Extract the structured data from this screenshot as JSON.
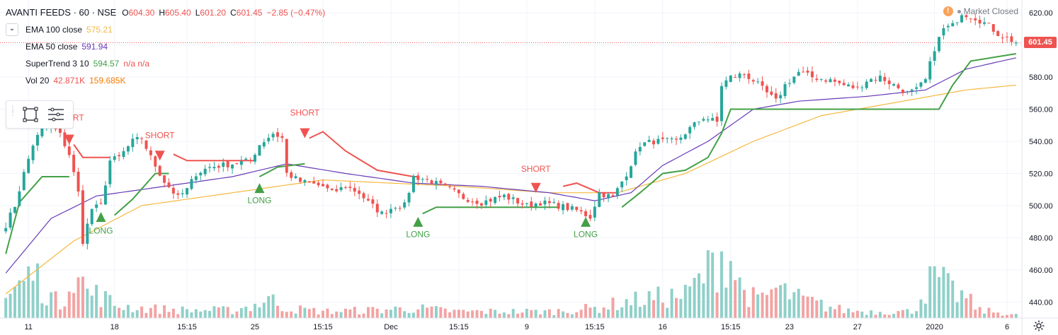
{
  "header": {
    "title": "AVANTI FEEDS · 60 · NSE",
    "ohlc": {
      "o_label": "O",
      "o": "604.30",
      "h_label": "H",
      "h": "605.40",
      "l_label": "L",
      "l": "601.20",
      "c_label": "C",
      "c": "601.45",
      "change": "−2.85 (−0.47%)"
    },
    "market_status": "Market Closed",
    "collapse_icon": "chevron-down-icon"
  },
  "indicators": [
    {
      "name": "EMA 100 close",
      "value": "575.21",
      "color": "#f5b942"
    },
    {
      "name": "EMA 50 close",
      "value": "591.94",
      "color": "#673ab7"
    },
    {
      "name": "SuperTrend 3 10",
      "value": "594.57",
      "extra": "n/a n/a",
      "color": "#43a047",
      "extra_color": "#ef5350"
    },
    {
      "name": "Vol 20",
      "value": "42.871K",
      "value2": "159.685K",
      "color": "#ef5350",
      "color2": "#f57c00"
    }
  ],
  "toolbox": {
    "icons": [
      "rectangle-select-icon",
      "lines-menu-icon"
    ]
  },
  "chart_data": {
    "type": "candlestick",
    "symbol": "AVANTI FEEDS",
    "interval": "60",
    "exchange": "NSE",
    "ylim": [
      430,
      628
    ],
    "y_ticks": [
      440,
      460,
      480,
      500,
      520,
      540,
      560,
      580,
      600,
      620
    ],
    "x_tick_labels": [
      {
        "i": 5,
        "label": "11"
      },
      {
        "i": 24,
        "label": "18"
      },
      {
        "i": 40,
        "label": "15:15"
      },
      {
        "i": 55,
        "label": "25"
      },
      {
        "i": 70,
        "label": "15:15"
      },
      {
        "i": 85,
        "label": "Dec"
      },
      {
        "i": 100,
        "label": "15:15"
      },
      {
        "i": 115,
        "label": "9"
      },
      {
        "i": 130,
        "label": "15:15"
      },
      {
        "i": 145,
        "label": "16"
      },
      {
        "i": 160,
        "label": "15:15"
      },
      {
        "i": 173,
        "label": "23"
      },
      {
        "i": 188,
        "label": "27"
      },
      {
        "i": 205,
        "label": "2020"
      },
      {
        "i": 221,
        "label": "6"
      }
    ],
    "last_price": 601.45,
    "last_price_label": "601.45",
    "price_anchors": [
      [
        0,
        488
      ],
      [
        2,
        500
      ],
      [
        4,
        520
      ],
      [
        6,
        538
      ],
      [
        8,
        548
      ],
      [
        10,
        550
      ],
      [
        12,
        544
      ],
      [
        14,
        532
      ],
      [
        16,
        508
      ],
      [
        17,
        478
      ],
      [
        19,
        498
      ],
      [
        21,
        500
      ],
      [
        23,
        528
      ],
      [
        25,
        530
      ],
      [
        28,
        540
      ],
      [
        30,
        542
      ],
      [
        32,
        530
      ],
      [
        35,
        515
      ],
      [
        38,
        505
      ],
      [
        40,
        510
      ],
      [
        42,
        520
      ],
      [
        45,
        524
      ],
      [
        50,
        526
      ],
      [
        54,
        528
      ],
      [
        56,
        538
      ],
      [
        59,
        545
      ],
      [
        61,
        542
      ],
      [
        62,
        520
      ],
      [
        65,
        515
      ],
      [
        70,
        512
      ],
      [
        72,
        508
      ],
      [
        75,
        512
      ],
      [
        78,
        508
      ],
      [
        80,
        502
      ],
      [
        83,
        495
      ],
      [
        86,
        500
      ],
      [
        88,
        500
      ],
      [
        90,
        518
      ],
      [
        93,
        516
      ],
      [
        98,
        510
      ],
      [
        101,
        505
      ],
      [
        105,
        502
      ],
      [
        110,
        506
      ],
      [
        115,
        500
      ],
      [
        118,
        502
      ],
      [
        122,
        500
      ],
      [
        126,
        497
      ],
      [
        129,
        493
      ],
      [
        131,
        508
      ],
      [
        134,
        505
      ],
      [
        137,
        520
      ],
      [
        140,
        538
      ],
      [
        143,
        540
      ],
      [
        148,
        540
      ],
      [
        151,
        548
      ],
      [
        154,
        555
      ],
      [
        157,
        552
      ],
      [
        158,
        575
      ],
      [
        160,
        580
      ],
      [
        163,
        582
      ],
      [
        165,
        578
      ],
      [
        168,
        570
      ],
      [
        170,
        565
      ],
      [
        172,
        575
      ],
      [
        175,
        583
      ],
      [
        178,
        580
      ],
      [
        182,
        578
      ],
      [
        185,
        575
      ],
      [
        188,
        573
      ],
      [
        190,
        578
      ],
      [
        193,
        580
      ],
      [
        196,
        575
      ],
      [
        199,
        570
      ],
      [
        201,
        572
      ],
      [
        203,
        578
      ],
      [
        205,
        598
      ],
      [
        207,
        610
      ],
      [
        209,
        612
      ],
      [
        211,
        620
      ],
      [
        214,
        617
      ],
      [
        217,
        612
      ],
      [
        219,
        607
      ],
      [
        223,
        601.45
      ]
    ],
    "volume_levels": [
      [
        0,
        0.3
      ],
      [
        3,
        0.5
      ],
      [
        6,
        0.7
      ],
      [
        9,
        0.4
      ],
      [
        12,
        0.2
      ],
      [
        15,
        0.8
      ],
      [
        18,
        0.4
      ],
      [
        21,
        0.35
      ],
      [
        24,
        0.2
      ],
      [
        30,
        0.15
      ],
      [
        40,
        0.12
      ],
      [
        50,
        0.12
      ],
      [
        55,
        0.2
      ],
      [
        58,
        0.3
      ],
      [
        62,
        0.15
      ],
      [
        70,
        0.1
      ],
      [
        80,
        0.12
      ],
      [
        90,
        0.15
      ],
      [
        100,
        0.1
      ],
      [
        110,
        0.1
      ],
      [
        120,
        0.1
      ],
      [
        130,
        0.15
      ],
      [
        137,
        0.25
      ],
      [
        142,
        0.3
      ],
      [
        150,
        0.35
      ],
      [
        156,
        0.8
      ],
      [
        158,
        1.0
      ],
      [
        160,
        0.9
      ],
      [
        162,
        0.5
      ],
      [
        166,
        0.25
      ],
      [
        170,
        0.45
      ],
      [
        175,
        0.3
      ],
      [
        180,
        0.2
      ],
      [
        185,
        0.12
      ],
      [
        190,
        0.1
      ],
      [
        200,
        0.1
      ],
      [
        204,
        0.55
      ],
      [
        206,
        0.6
      ],
      [
        208,
        0.45
      ],
      [
        212,
        0.3
      ],
      [
        215,
        0.12
      ],
      [
        223,
        0.05
      ]
    ],
    "ema100_anchors": [
      [
        0,
        445
      ],
      [
        15,
        478
      ],
      [
        30,
        500
      ],
      [
        50,
        508
      ],
      [
        70,
        516
      ],
      [
        85,
        514
      ],
      [
        100,
        512
      ],
      [
        120,
        508
      ],
      [
        135,
        508
      ],
      [
        150,
        520
      ],
      [
        165,
        540
      ],
      [
        180,
        556
      ],
      [
        200,
        566
      ],
      [
        212,
        572
      ],
      [
        223,
        575
      ]
    ],
    "ema50_anchors": [
      [
        0,
        458
      ],
      [
        10,
        492
      ],
      [
        20,
        506
      ],
      [
        35,
        512
      ],
      [
        50,
        518
      ],
      [
        62,
        526
      ],
      [
        75,
        520
      ],
      [
        90,
        514
      ],
      [
        105,
        512
      ],
      [
        120,
        508
      ],
      [
        130,
        503
      ],
      [
        138,
        508
      ],
      [
        145,
        525
      ],
      [
        155,
        540
      ],
      [
        165,
        560
      ],
      [
        175,
        565
      ],
      [
        190,
        568
      ],
      [
        203,
        572
      ],
      [
        212,
        585
      ],
      [
        223,
        592
      ]
    ],
    "supertrend_segments": [
      {
        "dir": "up",
        "pts": [
          [
            0,
            470
          ],
          [
            3,
            502
          ],
          [
            8,
            518
          ],
          [
            14,
            518
          ]
        ]
      },
      {
        "dir": "down",
        "pts": [
          [
            15,
            538
          ],
          [
            17,
            530
          ],
          [
            23,
            530
          ]
        ]
      },
      {
        "dir": "up",
        "pts": [
          [
            24,
            494
          ],
          [
            28,
            504
          ],
          [
            33,
            520
          ],
          [
            36,
            520
          ]
        ]
      },
      {
        "dir": "down",
        "pts": [
          [
            37,
            532
          ],
          [
            40,
            528
          ],
          [
            55,
            528
          ]
        ]
      },
      {
        "dir": "up",
        "pts": [
          [
            56,
            518
          ],
          [
            60,
            524
          ],
          [
            66,
            526
          ]
        ]
      },
      {
        "dir": "down",
        "pts": [
          [
            67,
            542
          ],
          [
            70,
            546
          ],
          [
            75,
            534
          ],
          [
            82,
            522
          ],
          [
            90,
            518
          ],
          [
            91,
            518
          ]
        ]
      },
      {
        "dir": "up",
        "pts": [
          [
            92,
            495
          ],
          [
            95,
            499
          ],
          [
            122,
            499
          ]
        ]
      },
      {
        "dir": "down",
        "pts": [
          [
            123,
            512
          ],
          [
            126,
            514
          ],
          [
            131,
            508
          ],
          [
            135,
            508
          ]
        ]
      },
      {
        "dir": "up",
        "pts": [
          [
            136,
            499
          ],
          [
            140,
            508
          ],
          [
            145,
            520
          ],
          [
            150,
            522
          ],
          [
            155,
            530
          ],
          [
            158,
            545
          ],
          [
            160,
            560
          ],
          [
            206,
            560
          ],
          [
            209,
            575
          ],
          [
            213,
            590
          ],
          [
            223,
            594.57
          ]
        ]
      }
    ],
    "signals": [
      {
        "i": 14,
        "type": "SHORT",
        "price": 538,
        "label_price": 553
      },
      {
        "i": 21,
        "type": "LONG",
        "price": 496,
        "label_price": 486
      },
      {
        "i": 34,
        "type": "SHORT",
        "price": 528,
        "label_price": 542
      },
      {
        "i": 56,
        "type": "LONG",
        "price": 514,
        "label_price": 505
      },
      {
        "i": 66,
        "type": "SHORT",
        "price": 542,
        "label_price": 556
      },
      {
        "i": 91,
        "type": "LONG",
        "price": 493,
        "label_price": 484
      },
      {
        "i": 117,
        "type": "SHORT",
        "price": 508,
        "label_price": 521
      },
      {
        "i": 128,
        "type": "LONG",
        "price": 493,
        "label_price": 484
      }
    ],
    "colors": {
      "up": "#26a69a",
      "down": "#ef5350",
      "vol_up": "#8fd0c9",
      "vol_down": "#f2a3a3"
    }
  }
}
